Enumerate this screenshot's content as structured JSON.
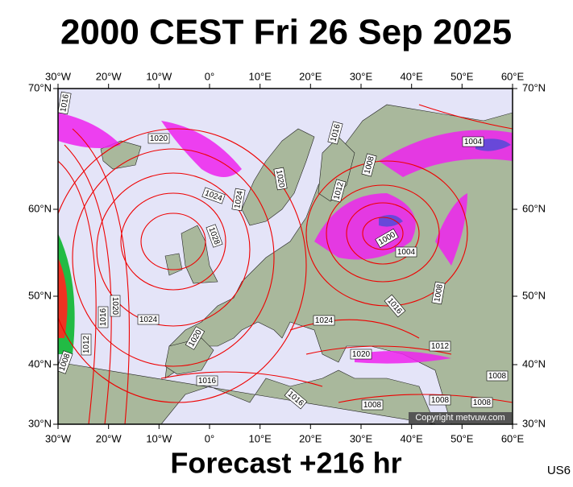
{
  "title": "2000 CEST Fri 26 Sep 2025",
  "footer": "Forecast +216 hr",
  "model_code": "US6",
  "copyright": "Copyright metvuw.com",
  "longitude_labels": [
    "30°W",
    "20°W",
    "10°W",
    "0°",
    "10°E",
    "20°E",
    "30°E",
    "40°E",
    "50°E",
    "60°E"
  ],
  "latitude_labels": [
    "70°N",
    "60°N",
    "50°N",
    "40°N",
    "30°N"
  ],
  "isobar_labels": [
    "1016",
    "1020",
    "1024",
    "1024",
    "1020",
    "1016",
    "1008",
    "1012",
    "1004",
    "1028",
    "1000",
    "1004",
    "1008",
    "1016",
    "1020",
    "1016",
    "1012",
    "1024",
    "1008",
    "1024",
    "1020",
    "1012",
    "1020",
    "1016",
    "1016",
    "1008",
    "1008",
    "1008",
    "1008"
  ]
}
